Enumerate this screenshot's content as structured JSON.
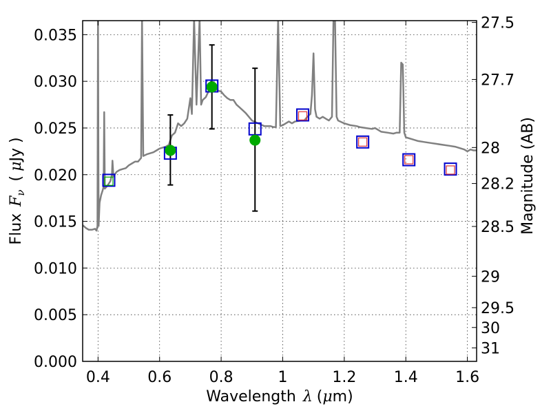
{
  "chart_data": {
    "type": "scatter",
    "x_axis": {
      "label_prefix": "Wavelength",
      "label_symbol": "λ",
      "label_unit_open": "(",
      "label_unit_symbol": "μ",
      "label_unit_rest": "m)",
      "range": [
        0.35,
        1.63
      ],
      "ticks": [
        0.4,
        0.6,
        0.8,
        1.0,
        1.2,
        1.4,
        1.6
      ],
      "tick_labels": [
        "0.4",
        "0.6",
        "0.8",
        "1",
        "1.2",
        "1.4",
        "1.6"
      ]
    },
    "y_axis": {
      "label_prefix": "Flux",
      "label_symbol": "F",
      "label_subscript": "ν",
      "label_unit_open": "(",
      "label_unit_symbol": "μ",
      "label_unit_rest": "Jy )",
      "range": [
        0.0,
        0.0365
      ],
      "ticks": [
        0.0,
        0.005,
        0.01,
        0.015,
        0.02,
        0.025,
        0.03,
        0.035
      ],
      "tick_labels": [
        "0.000",
        "0.005",
        "0.010",
        "0.015",
        "0.020",
        "0.025",
        "0.030",
        "0.035"
      ]
    },
    "y2_axis": {
      "label": "Magnitude (AB)",
      "ticks": [
        27.5,
        27.7,
        28,
        28.2,
        28.5,
        29,
        29.5,
        30,
        31
      ],
      "tick_labels": [
        "27.5",
        "27.7",
        "28",
        "28.2",
        "28.5",
        "29",
        "29.5",
        "30",
        "31"
      ]
    },
    "grid": true,
    "model_spectrum": {
      "color": "#808080",
      "points": [
        [
          0.35,
          0.0146
        ],
        [
          0.36,
          0.0143
        ],
        [
          0.37,
          0.0141
        ],
        [
          0.38,
          0.0141
        ],
        [
          0.39,
          0.0142
        ],
        [
          0.395,
          0.014
        ],
        [
          0.398,
          0.0145
        ],
        [
          0.4,
          0.0368
        ],
        [
          0.402,
          0.0145
        ],
        [
          0.405,
          0.017
        ],
        [
          0.41,
          0.0178
        ],
        [
          0.415,
          0.0183
        ],
        [
          0.418,
          0.0187
        ],
        [
          0.42,
          0.0267
        ],
        [
          0.422,
          0.0185
        ],
        [
          0.43,
          0.0188
        ],
        [
          0.44,
          0.0193
        ],
        [
          0.445,
          0.02
        ],
        [
          0.447,
          0.0215
        ],
        [
          0.45,
          0.0198
        ],
        [
          0.46,
          0.0203
        ],
        [
          0.47,
          0.0205
        ],
        [
          0.48,
          0.0206
        ],
        [
          0.49,
          0.0207
        ],
        [
          0.5,
          0.021
        ],
        [
          0.51,
          0.0212
        ],
        [
          0.52,
          0.0214
        ],
        [
          0.53,
          0.0214
        ],
        [
          0.54,
          0.0218
        ],
        [
          0.543,
          0.0368
        ],
        [
          0.547,
          0.022
        ],
        [
          0.56,
          0.0222
        ],
        [
          0.57,
          0.0223
        ],
        [
          0.58,
          0.0224
        ],
        [
          0.59,
          0.0226
        ],
        [
          0.6,
          0.0228
        ],
        [
          0.62,
          0.023
        ],
        [
          0.63,
          0.0232
        ],
        [
          0.64,
          0.0242
        ],
        [
          0.65,
          0.0245
        ],
        [
          0.655,
          0.025
        ],
        [
          0.66,
          0.0255
        ],
        [
          0.67,
          0.0252
        ],
        [
          0.68,
          0.0255
        ],
        [
          0.69,
          0.026
        ],
        [
          0.7,
          0.0282
        ],
        [
          0.705,
          0.0265
        ],
        [
          0.712,
          0.0368
        ],
        [
          0.72,
          0.0275
        ],
        [
          0.73,
          0.0368
        ],
        [
          0.735,
          0.0275
        ],
        [
          0.74,
          0.028
        ],
        [
          0.75,
          0.0283
        ],
        [
          0.76,
          0.029
        ],
        [
          0.77,
          0.029
        ],
        [
          0.78,
          0.0292
        ],
        [
          0.79,
          0.029
        ],
        [
          0.8,
          0.0289
        ],
        [
          0.81,
          0.0285
        ],
        [
          0.82,
          0.0282
        ],
        [
          0.83,
          0.028
        ],
        [
          0.84,
          0.028
        ],
        [
          0.85,
          0.0275
        ],
        [
          0.86,
          0.0272
        ],
        [
          0.87,
          0.0269
        ],
        [
          0.88,
          0.0266
        ],
        [
          0.89,
          0.0262
        ],
        [
          0.9,
          0.0258
        ],
        [
          0.92,
          0.0255
        ],
        [
          0.94,
          0.0252
        ],
        [
          0.96,
          0.0252
        ],
        [
          0.97,
          0.0251
        ],
        [
          0.978,
          0.0251
        ],
        [
          0.985,
          0.0368
        ],
        [
          0.992,
          0.0252
        ],
        [
          1.0,
          0.0253
        ],
        [
          1.02,
          0.0257
        ],
        [
          1.03,
          0.0255
        ],
        [
          1.04,
          0.0257
        ],
        [
          1.06,
          0.0258
        ],
        [
          1.07,
          0.0258
        ],
        [
          1.08,
          0.0262
        ],
        [
          1.09,
          0.0265
        ],
        [
          1.095,
          0.0285
        ],
        [
          1.1,
          0.033
        ],
        [
          1.105,
          0.027
        ],
        [
          1.11,
          0.0262
        ],
        [
          1.12,
          0.026
        ],
        [
          1.13,
          0.0262
        ],
        [
          1.14,
          0.026
        ],
        [
          1.15,
          0.0258
        ],
        [
          1.16,
          0.0262
        ],
        [
          1.165,
          0.0368
        ],
        [
          1.17,
          0.0368
        ],
        [
          1.175,
          0.0262
        ],
        [
          1.18,
          0.0258
        ],
        [
          1.2,
          0.0255
        ],
        [
          1.22,
          0.0253
        ],
        [
          1.24,
          0.0252
        ],
        [
          1.25,
          0.0251
        ],
        [
          1.27,
          0.025
        ],
        [
          1.29,
          0.0249
        ],
        [
          1.3,
          0.025
        ],
        [
          1.31,
          0.0248
        ],
        [
          1.32,
          0.0246
        ],
        [
          1.34,
          0.0245
        ],
        [
          1.36,
          0.0244
        ],
        [
          1.37,
          0.0245
        ],
        [
          1.38,
          0.0245
        ],
        [
          1.385,
          0.032
        ],
        [
          1.39,
          0.0318
        ],
        [
          1.395,
          0.0245
        ],
        [
          1.4,
          0.024
        ],
        [
          1.42,
          0.0238
        ],
        [
          1.44,
          0.0236
        ],
        [
          1.46,
          0.0235
        ],
        [
          1.48,
          0.0234
        ],
        [
          1.5,
          0.0233
        ],
        [
          1.52,
          0.0232
        ],
        [
          1.54,
          0.0231
        ],
        [
          1.56,
          0.023
        ],
        [
          1.58,
          0.0228
        ],
        [
          1.59,
          0.0227
        ],
        [
          1.6,
          0.0225
        ],
        [
          1.61,
          0.0227
        ],
        [
          1.62,
          0.0226
        ],
        [
          1.63,
          0.0226
        ]
      ]
    },
    "model_photometry": {
      "marker": "open-square",
      "color": "#0000cc",
      "x": [
        0.435,
        0.635,
        0.77,
        0.91,
        1.065,
        1.26,
        1.41,
        1.545
      ],
      "y": [
        0.0194,
        0.0223,
        0.0295,
        0.0249,
        0.0264,
        0.0235,
        0.0216,
        0.0206
      ]
    },
    "observed_photometry": {
      "marker": "filled-circle",
      "color": "#00aa00",
      "x": [
        0.635,
        0.77,
        0.91
      ],
      "y": [
        0.0226,
        0.0294,
        0.0237
      ],
      "y_low": [
        0.0189,
        0.0249,
        0.0161
      ],
      "y_high": [
        0.0264,
        0.0339,
        0.0314
      ]
    },
    "upper_limits": {
      "marker": "small-open-square",
      "color": "#dd3333",
      "x": [
        1.065,
        1.26,
        1.41,
        1.545
      ],
      "y": [
        0.0263,
        0.0235,
        0.0216,
        0.0205
      ]
    },
    "nondetection": {
      "marker": "small-open-square",
      "color": "#00aa00",
      "x": [
        0.435
      ],
      "y": [
        0.0193
      ]
    }
  }
}
